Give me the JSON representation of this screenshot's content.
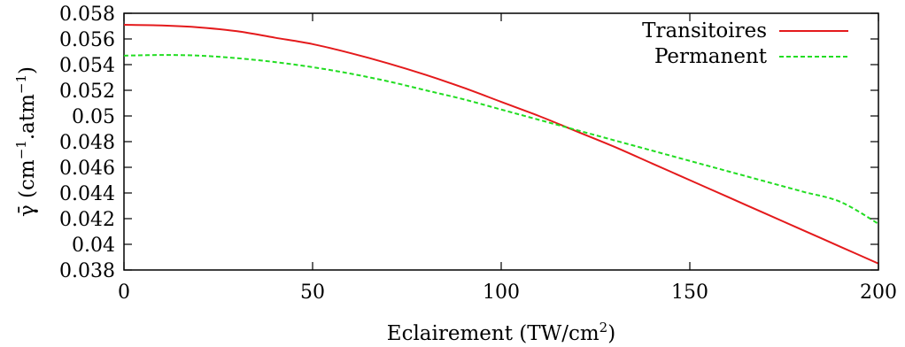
{
  "chart_data": {
    "type": "line",
    "title": "",
    "xlabel_text": "Eclairement (TW/cm",
    "xlabel_sup": "2",
    "xlabel_end": ")",
    "ylabel_prefix": "γ̄ (cm",
    "ylabel_sup1": "−1",
    "ylabel_mid": ".atm",
    "ylabel_sup2": "−1",
    "ylabel_end": ")",
    "xlim": [
      0,
      200
    ],
    "ylim": [
      0.038,
      0.058
    ],
    "x_ticks": [
      {
        "value": 0,
        "label": "0"
      },
      {
        "value": 50,
        "label": "50"
      },
      {
        "value": 100,
        "label": "100"
      },
      {
        "value": 150,
        "label": "150"
      },
      {
        "value": 200,
        "label": "200"
      }
    ],
    "y_ticks": [
      {
        "value": 0.038,
        "label": "0.038"
      },
      {
        "value": 0.04,
        "label": "0.04"
      },
      {
        "value": 0.042,
        "label": "0.042"
      },
      {
        "value": 0.044,
        "label": "0.044"
      },
      {
        "value": 0.046,
        "label": "0.046"
      },
      {
        "value": 0.048,
        "label": "0.048"
      },
      {
        "value": 0.05,
        "label": "0.05"
      },
      {
        "value": 0.052,
        "label": "0.052"
      },
      {
        "value": 0.054,
        "label": "0.054"
      },
      {
        "value": 0.056,
        "label": "0.056"
      },
      {
        "value": 0.058,
        "label": "0.058"
      }
    ],
    "grid": false,
    "legend_position": "top-right",
    "series": [
      {
        "name": "Transitoires",
        "color": "#e41a1c",
        "style": "solid",
        "x": [
          0,
          10,
          20,
          30,
          40,
          50,
          60,
          70,
          80,
          90,
          100,
          110,
          120,
          130,
          140,
          150,
          160,
          170,
          180,
          190,
          200
        ],
        "values": [
          0.0571,
          0.05705,
          0.0569,
          0.0566,
          0.0561,
          0.0556,
          0.0549,
          0.0541,
          0.0532,
          0.0522,
          0.0511,
          0.05,
          0.0488,
          0.0476,
          0.0463,
          0.045,
          0.0437,
          0.0424,
          0.0411,
          0.0398,
          0.0385
        ]
      },
      {
        "name": "Permanent",
        "color": "#22dd22",
        "style": "dashed",
        "x": [
          0,
          10,
          20,
          30,
          40,
          50,
          60,
          70,
          80,
          90,
          100,
          110,
          120,
          130,
          140,
          150,
          160,
          170,
          180,
          190,
          200
        ],
        "values": [
          0.0547,
          0.05475,
          0.0547,
          0.0545,
          0.0542,
          0.0538,
          0.0533,
          0.0527,
          0.052,
          0.0513,
          0.0505,
          0.0497,
          0.0489,
          0.0481,
          0.0473,
          0.0465,
          0.0457,
          0.0449,
          0.0441,
          0.0433,
          0.0416
        ]
      }
    ]
  }
}
